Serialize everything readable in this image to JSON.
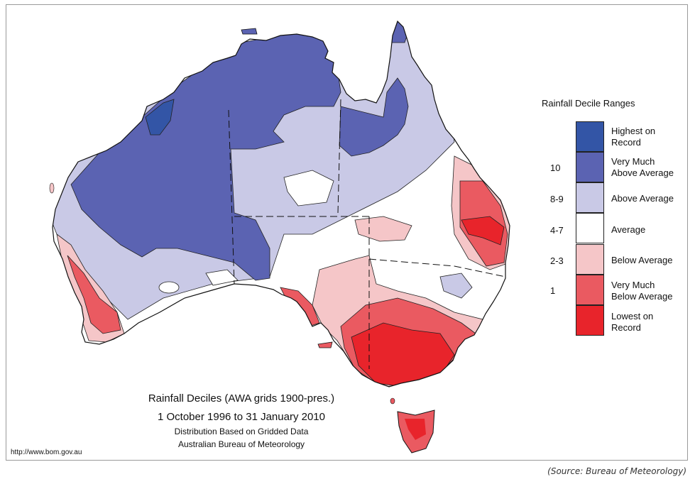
{
  "caption": {
    "line1": "Rainfall Deciles (AWA grids 1900-pres.)",
    "line2": "1 October 1996 to 31 January 2010",
    "line3": "Distribution Based on Gridded Data",
    "line4": "Australian Bureau of Meteorology"
  },
  "url": "http://www.bom.gov.au",
  "source": "(Source: Bureau of Meteorology)",
  "legend": {
    "title": "Rainfall Decile Ranges",
    "items": [
      {
        "label1": "Highest on",
        "label2": "Record",
        "decile": "",
        "color": "#3355a6"
      },
      {
        "label1": "Very Much",
        "label2": "Above Average",
        "decile": "10",
        "color": "#5b63b2"
      },
      {
        "label1": "Above Average",
        "label2": "",
        "decile": "8-9",
        "color": "#c9c9e6"
      },
      {
        "label1": "Average",
        "label2": "",
        "decile": "4-7",
        "color": "#ffffff"
      },
      {
        "label1": "Below Average",
        "label2": "",
        "decile": "2-3",
        "color": "#f5c6c8"
      },
      {
        "label1": "Very Much",
        "label2": "Below Average",
        "decile": "1",
        "color": "#ea5a61"
      },
      {
        "label1": "Lowest on",
        "label2": "Record",
        "decile": "",
        "color": "#e8242b"
      }
    ]
  }
}
